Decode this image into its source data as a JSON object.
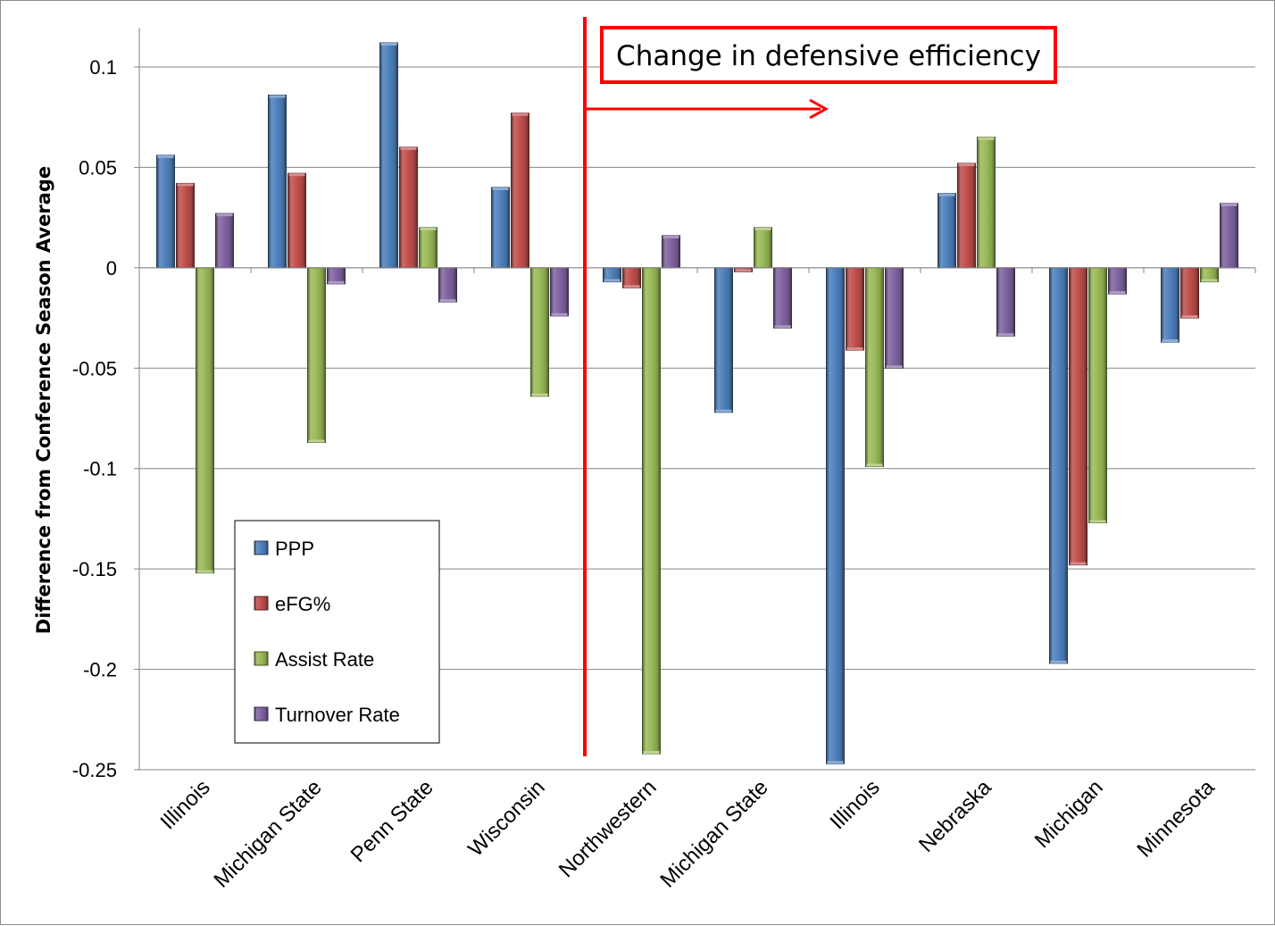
{
  "chart_data": {
    "type": "bar",
    "categories": [
      "Illinois",
      "Michigan State",
      "Penn State",
      "Wisconsin",
      "Northwestern",
      "Michigan State",
      "Illinois",
      "Nebraska",
      "Michigan",
      "Minnesota"
    ],
    "series": [
      {
        "name": "PPP",
        "color": "#4f81bd",
        "values": [
          0.056,
          0.086,
          0.112,
          0.04,
          -0.007,
          -0.072,
          -0.247,
          0.037,
          -0.197,
          -0.037
        ]
      },
      {
        "name": "eFG%",
        "color": "#c0504d",
        "values": [
          0.042,
          0.047,
          0.06,
          0.077,
          -0.01,
          -0.002,
          -0.041,
          0.052,
          -0.148,
          -0.025
        ]
      },
      {
        "name": "Assist Rate",
        "color": "#9bbb59",
        "values": [
          -0.152,
          -0.087,
          0.02,
          -0.064,
          -0.242,
          0.02,
          -0.099,
          0.065,
          -0.127,
          -0.007
        ]
      },
      {
        "name": "Turnover Rate",
        "color": "#8064a2",
        "values": [
          0.027,
          -0.008,
          -0.017,
          -0.024,
          0.016,
          -0.03,
          -0.05,
          -0.034,
          -0.013,
          0.032
        ]
      }
    ],
    "title": "",
    "xlabel": "",
    "ylabel": "Difference from Conference Season Average",
    "ylim": [
      -0.25,
      0.1
    ],
    "yticks": [
      0.1,
      0.05,
      0,
      -0.05,
      -0.1,
      -0.15,
      -0.2,
      -0.25
    ],
    "ytick_labels": [
      "0.1",
      "0.05",
      "0",
      "-0.05",
      "-0.1",
      "-0.15",
      "-0.2",
      "-0.25"
    ],
    "grid": true,
    "legend_position": "bottom-left",
    "annotation": {
      "text": "Change in defensive efficiency",
      "color": "#ff0000",
      "divider_after_category": 4
    }
  }
}
